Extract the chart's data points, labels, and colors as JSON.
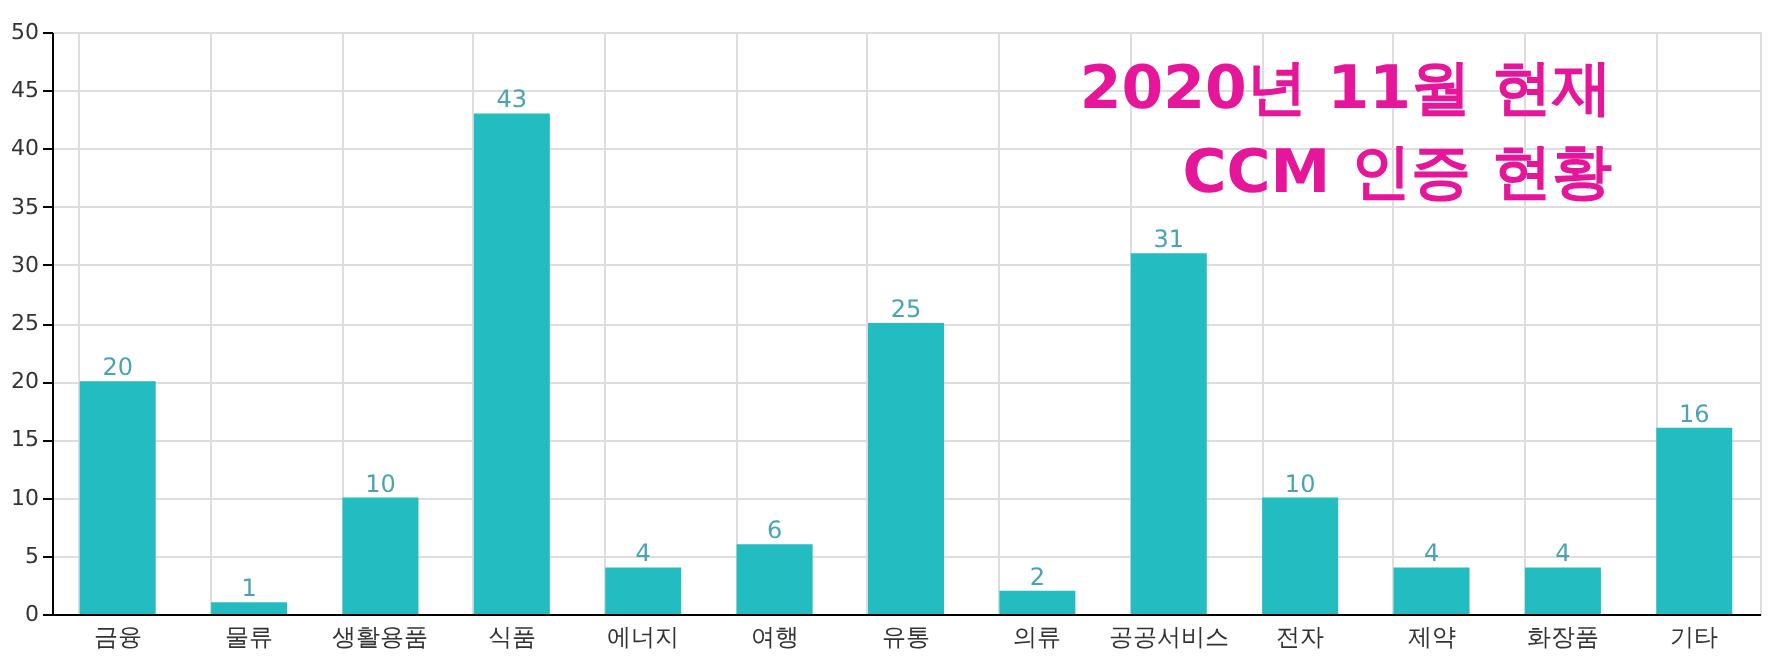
{
  "chart_data": {
    "type": "bar",
    "title": "2020년 11월 현재\nCCM 인증 현황",
    "categories": [
      "금융",
      "물류",
      "생활용품",
      "식품",
      "에너지",
      "여행",
      "유통",
      "의류",
      "공공서비스",
      "전자",
      "제약",
      "화장품",
      "기타"
    ],
    "values": [
      20,
      1,
      10,
      43,
      4,
      6,
      25,
      2,
      31,
      10,
      4,
      4,
      16
    ],
    "color": "#22bcc1",
    "ylim": [
      0,
      50
    ],
    "yticks": [
      0,
      5,
      10,
      15,
      20,
      25,
      30,
      35,
      40,
      45,
      50
    ],
    "grid": true,
    "data_labels": true
  }
}
